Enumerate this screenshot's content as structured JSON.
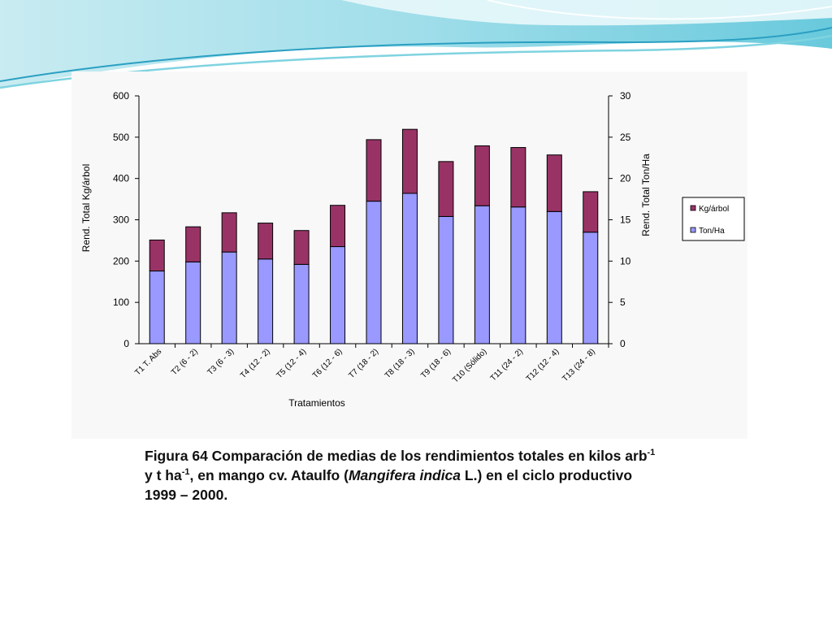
{
  "chart_data": {
    "type": "bar",
    "stacked": true,
    "categories": [
      "T1 T. Abs",
      "T2 (6 - 2)",
      "T3 (6 - 3)",
      "T4 (12 - 2)",
      "T5 (12 - 4)",
      "T6 (12 - 6)",
      "T7 (18 - 2)",
      "T8 (18 - 3)",
      "T9 (18 - 6)",
      "T10 (Sólido)",
      "T11 (24 - 2)",
      "T12 (12 - 4)",
      "T13 (24 - 8)"
    ],
    "series": [
      {
        "name": "Ton/Ha",
        "color": "#9999ff",
        "values": [
          176,
          198,
          222,
          205,
          192,
          235,
          345,
          364,
          308,
          334,
          331,
          320,
          270
        ]
      },
      {
        "name": "Kg/árbol",
        "color": "#993366",
        "values": [
          75,
          85,
          95,
          87,
          82,
          100,
          149,
          155,
          133,
          145,
          144,
          137,
          98
        ]
      }
    ],
    "legend_order": [
      "Kg/árbol",
      "Ton/Ha"
    ],
    "xlabel": "Tratamientos",
    "ylabel": "Rend. Total Kg/árbol",
    "y2label": "Rend. Total Ton/Ha",
    "ylim": [
      0,
      600
    ],
    "y2lim": [
      0,
      30
    ],
    "yticks": [
      "0",
      "100",
      "200",
      "300",
      "400",
      "500",
      "600"
    ],
    "y2ticks": [
      "0",
      "5",
      "10",
      "15",
      "20",
      "25",
      "30"
    ],
    "legend_position": "right",
    "grid": false
  },
  "caption": {
    "part1": "Figura 64 Comparación de medias de los rendimientos totales en kilos arb",
    "sup1": "-1",
    "part2": " y t ha",
    "sup2": "-1",
    "part3": ", en mango cv. Ataulfo (",
    "italic": "Mangifera indica",
    "part4": " L.) en el ciclo productivo 1999 – 2000."
  },
  "theme": {
    "wave_light": "#cdeef2",
    "wave_mid": "#7fd3e0",
    "wave_dark": "#2a9fc2"
  }
}
